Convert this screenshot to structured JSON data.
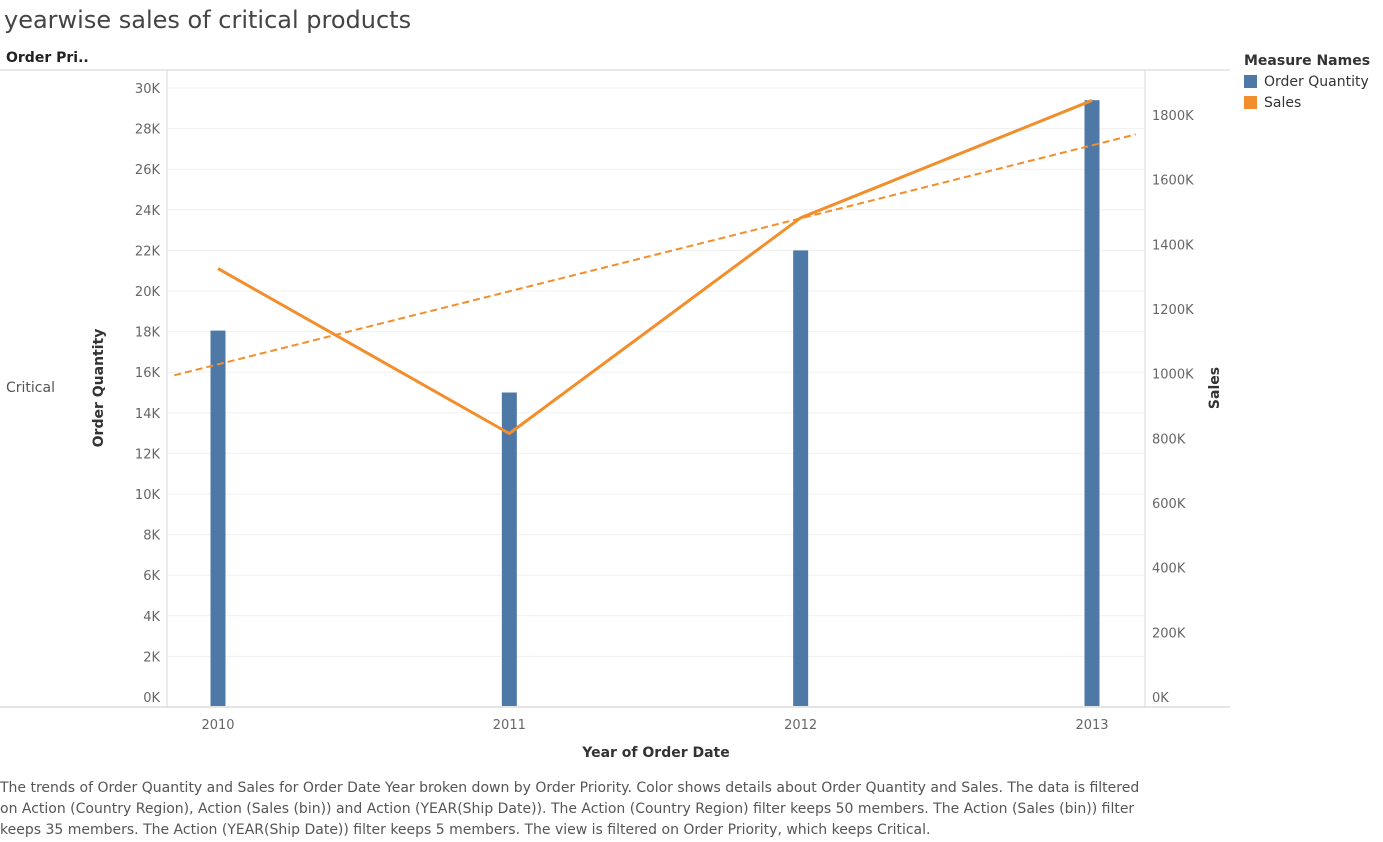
{
  "page": {
    "title": "yearwise sales of critical products",
    "row_header": "Order Pri..",
    "row_label": "Critical",
    "caption": "The trends of Order Quantity and Sales for Order Date Year broken down by Order Priority.  Color shows details about Order Quantity and Sales. The data is filtered on Action (Country Region), Action (Sales (bin)) and Action (YEAR(Ship Date)). The Action (Country Region) filter keeps 50 members. The Action (Sales (bin)) filter keeps 35 members. The Action (YEAR(Ship Date)) filter keeps 5 members. The view is filtered on Order Priority, which keeps Critical."
  },
  "legend": {
    "title": "Measure Names",
    "items": [
      {
        "label": "Order Quantity",
        "color": "#4e79a7"
      },
      {
        "label": "Sales",
        "color": "#f28e2b"
      }
    ]
  },
  "chart_data": {
    "type": "bar",
    "title": "yearwise sales of critical products",
    "xlabel": "Year of Order Date",
    "categories": [
      "2010",
      "2011",
      "2012",
      "2013"
    ],
    "series": [
      {
        "name": "Order Quantity",
        "type": "bar",
        "axis": "left",
        "color": "#4e79a7",
        "values": [
          18050,
          15000,
          22000,
          29400
        ]
      },
      {
        "name": "Sales",
        "type": "line",
        "axis": "right",
        "color": "#f28e2b",
        "values": [
          1325000,
          815000,
          1482000,
          1845000
        ]
      }
    ],
    "trend_line": {
      "series": "Sales",
      "style": "dashed",
      "color": "#f28e2b",
      "start": [
        2009.85,
        995000
      ],
      "end": [
        2013.15,
        1740000
      ]
    },
    "y_left": {
      "label": "Order Quantity",
      "ylim": [
        0,
        30000
      ],
      "ticks": [
        0,
        2000,
        4000,
        6000,
        8000,
        10000,
        12000,
        14000,
        16000,
        18000,
        20000,
        22000,
        24000,
        26000,
        28000,
        30000
      ],
      "tick_labels": [
        "0K",
        "2K",
        "4K",
        "6K",
        "8K",
        "10K",
        "12K",
        "14K",
        "16K",
        "18K",
        "20K",
        "22K",
        "24K",
        "26K",
        "28K",
        "30K"
      ]
    },
    "y_right": {
      "label": "Sales",
      "ylim": [
        0,
        1880000
      ],
      "ticks": [
        0,
        200000,
        400000,
        600000,
        800000,
        1000000,
        1200000,
        1400000,
        1600000,
        1800000
      ],
      "tick_labels": [
        "0K",
        "200K",
        "400K",
        "600K",
        "800K",
        "1000K",
        "1200K",
        "1400K",
        "1600K",
        "1800K"
      ]
    },
    "grid": true,
    "legend_position": "top-right"
  }
}
